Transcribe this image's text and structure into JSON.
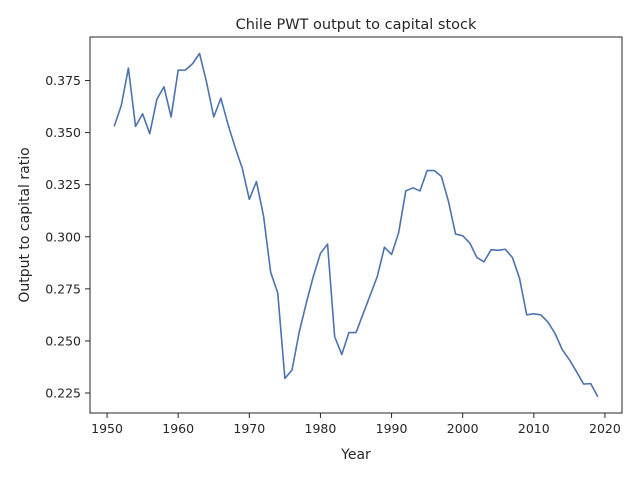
{
  "chart_data": {
    "type": "line",
    "title": "Chile PWT output to capital stock",
    "xlabel": "Year",
    "ylabel": "Output to capital ratio",
    "xlim": [
      1947.6,
      2022.4
    ],
    "ylim": [
      0.2154,
      0.3959
    ],
    "x_ticks": [
      1950,
      1960,
      1970,
      1980,
      1990,
      2000,
      2010,
      2020
    ],
    "y_ticks": [
      0.225,
      0.25,
      0.275,
      0.3,
      0.325,
      0.35,
      0.375
    ],
    "grid": false,
    "line_color": "#4c72b0",
    "series": [
      {
        "name": "Output to capital ratio",
        "x": [
          1951,
          1952,
          1953,
          1954,
          1955,
          1956,
          1957,
          1958,
          1959,
          1960,
          1961,
          1962,
          1963,
          1964,
          1965,
          1966,
          1967,
          1968,
          1969,
          1970,
          1971,
          1972,
          1973,
          1974,
          1975,
          1976,
          1977,
          1978,
          1979,
          1980,
          1981,
          1982,
          1983,
          1984,
          1985,
          1986,
          1987,
          1988,
          1989,
          1990,
          1991,
          1992,
          1993,
          1994,
          1995,
          1996,
          1997,
          1998,
          1999,
          2000,
          2001,
          2002,
          2003,
          2004,
          2005,
          2006,
          2007,
          2008,
          2009,
          2010,
          2011,
          2012,
          2013,
          2014,
          2015,
          2016,
          2017,
          2018,
          2019
        ],
        "values": [
          0.353,
          0.363,
          0.381,
          0.353,
          0.359,
          0.3495,
          0.366,
          0.372,
          0.3575,
          0.38,
          0.38,
          0.383,
          0.388,
          0.374,
          0.3575,
          0.3665,
          0.354,
          0.343,
          0.333,
          0.318,
          0.3265,
          0.31,
          0.283,
          0.273,
          0.232,
          0.236,
          0.254,
          0.268,
          0.281,
          0.292,
          0.2965,
          0.252,
          0.2435,
          0.254,
          0.254,
          0.263,
          0.272,
          0.281,
          0.295,
          0.2915,
          0.302,
          0.322,
          0.3235,
          0.322,
          0.3318,
          0.3318,
          0.329,
          0.317,
          0.3013,
          0.3005,
          0.297,
          0.29,
          0.288,
          0.2938,
          0.2935,
          0.294,
          0.29,
          0.28,
          0.2625,
          0.263,
          0.2625,
          0.259,
          0.2535,
          0.2458,
          0.241,
          0.2353,
          0.2293,
          0.2295,
          0.2232
        ]
      }
    ]
  }
}
